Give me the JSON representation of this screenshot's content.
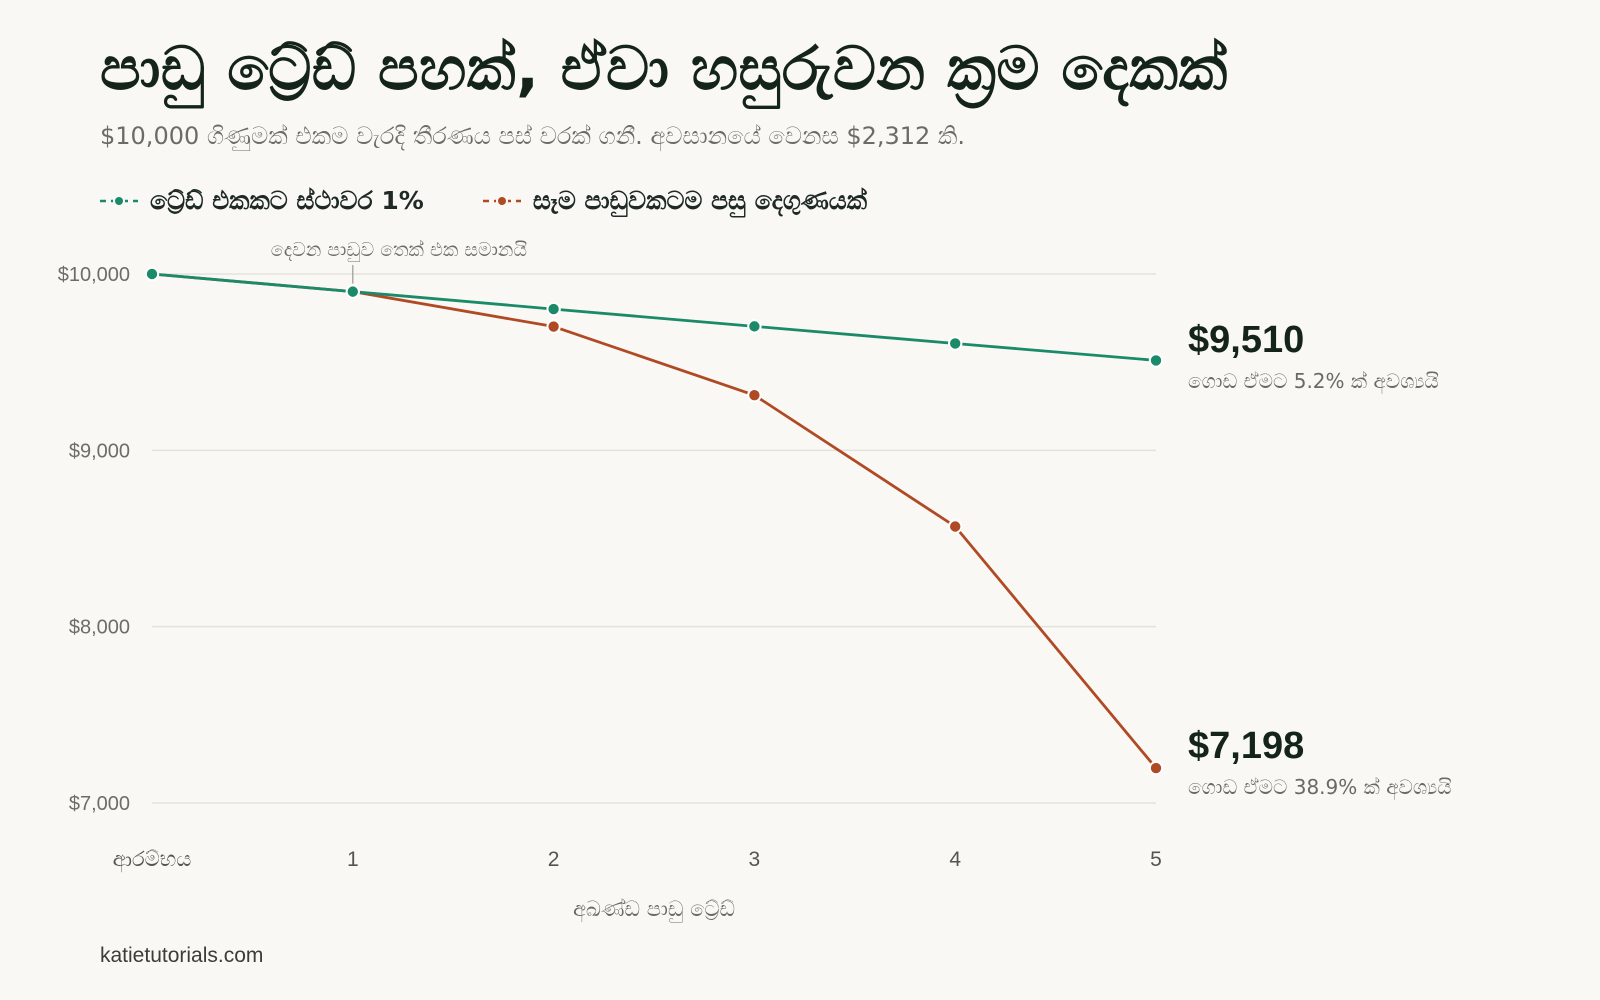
{
  "title": "පාඩු ට්‍රේඩ් පහක්, ඒවා හසුරුවන ක්‍රම දෙකක්",
  "subtitle": "$10,000 ගිණුමක් එකම වැරදි තීරණය පස් වරක් ගනී. අවසානයේ වෙනස $2,312 කි.",
  "source": "katietutorials.com",
  "colors": {
    "fixed": "#1b8a68",
    "double": "#b04a25",
    "grid": "#e4e2dc",
    "background": "#f9f8f4"
  },
  "chart_data": {
    "type": "line",
    "xlabel": "අඛණ්ඩ පාඩු ට්‍රේඩ්",
    "ylabel": "",
    "categories": [
      "ආරම්භය",
      "1",
      "2",
      "3",
      "4",
      "5"
    ],
    "ylim": [
      7000,
      10000
    ],
    "yticks": [
      10000,
      9000,
      8000,
      7000
    ],
    "ytick_labels": [
      "$10,000",
      "$9,000",
      "$8,000",
      "$7,000"
    ],
    "grid": true,
    "legend": "top-left",
    "series": [
      {
        "name": "ට්‍රේඩ් එකකට ස්ථාවර 1%",
        "color": "#1b8a68",
        "values": [
          10000,
          9900,
          9801,
          9703,
          9606,
          9510
        ],
        "end_label": "$9,510",
        "end_note": "ගොඩ ඒමට 5.2% ක් අවශ්‍යයි"
      },
      {
        "name": "සෑම පාඩුවකටම පසු දෙගුණයක්",
        "color": "#b04a25",
        "values": [
          10000,
          9900,
          9702,
          9313,
          8568,
          7198
        ],
        "end_label": "$7,198",
        "end_note": "ගොඩ ඒමට 38.9% ක් අවශ්‍යයි"
      }
    ],
    "annotations": [
      {
        "text": "දෙවන පාඩුව තෙක් එක සමානයි",
        "x": "1",
        "y": 9900
      }
    ]
  }
}
